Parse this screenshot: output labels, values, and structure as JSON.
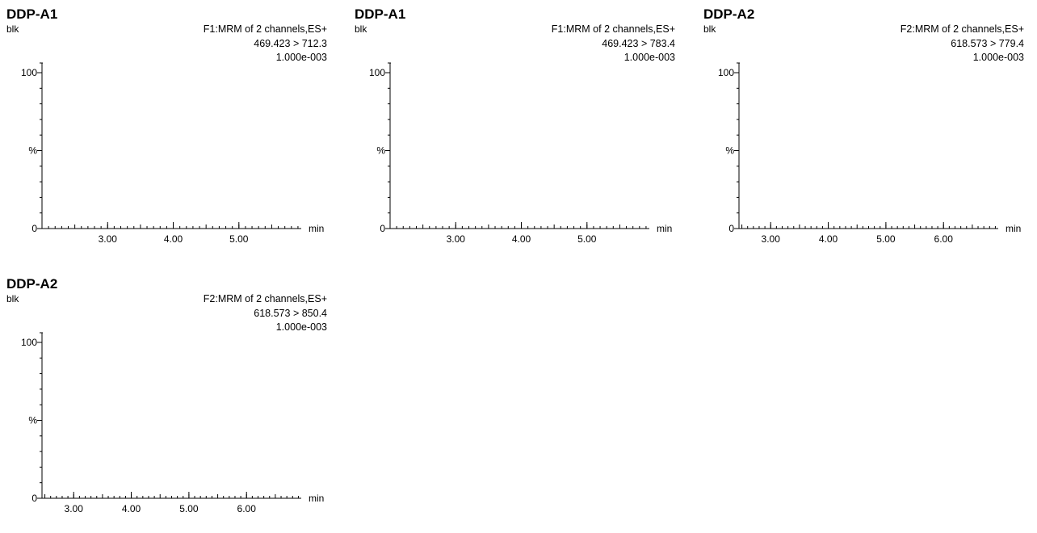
{
  "chart_data": [
    {
      "type": "line",
      "title": "DDP-A1",
      "sample": "blk",
      "function": "F1:MRM of 2 channels,ES+",
      "transition": "469.423 > 712.3",
      "intensity": "1.000e-003",
      "xlabel": "min",
      "xlim": [
        2.0,
        5.95
      ],
      "ylim": [
        0,
        100
      ],
      "y_ticks": [
        {
          "v": 0,
          "label": "0"
        },
        {
          "v": 50,
          "label": "%"
        },
        {
          "v": 100,
          "label": "100"
        }
      ],
      "x_ticks": [
        {
          "v": 3,
          "label": "3.00"
        },
        {
          "v": 4,
          "label": "4.00"
        },
        {
          "v": 5,
          "label": "5.00"
        }
      ],
      "minor_step": 0.1,
      "series": [
        {
          "x": [],
          "y": []
        }
      ]
    },
    {
      "type": "line",
      "title": "DDP-A1",
      "sample": "blk",
      "function": "F1:MRM of 2 channels,ES+",
      "transition": "469.423 > 783.4",
      "intensity": "1.000e-003",
      "xlabel": "min",
      "xlim": [
        2.0,
        5.95
      ],
      "ylim": [
        0,
        100
      ],
      "y_ticks": [
        {
          "v": 0,
          "label": "0"
        },
        {
          "v": 50,
          "label": "%"
        },
        {
          "v": 100,
          "label": "100"
        }
      ],
      "x_ticks": [
        {
          "v": 3,
          "label": "3.00"
        },
        {
          "v": 4,
          "label": "4.00"
        },
        {
          "v": 5,
          "label": "5.00"
        }
      ],
      "minor_step": 0.1,
      "series": [
        {
          "x": [],
          "y": []
        }
      ]
    },
    {
      "type": "line",
      "title": "DDP-A2",
      "sample": "blk",
      "function": "F2:MRM of 2 channels,ES+",
      "transition": "618.573 > 779.4",
      "intensity": "1.000e-003",
      "xlabel": "min",
      "xlim": [
        2.45,
        6.95
      ],
      "ylim": [
        0,
        100
      ],
      "y_ticks": [
        {
          "v": 0,
          "label": "0"
        },
        {
          "v": 50,
          "label": "%"
        },
        {
          "v": 100,
          "label": "100"
        }
      ],
      "x_ticks": [
        {
          "v": 3,
          "label": "3.00"
        },
        {
          "v": 4,
          "label": "4.00"
        },
        {
          "v": 5,
          "label": "5.00"
        },
        {
          "v": 6,
          "label": "6.00"
        }
      ],
      "minor_step": 0.1,
      "series": [
        {
          "x": [],
          "y": []
        }
      ]
    },
    {
      "type": "line",
      "title": "DDP-A2",
      "sample": "blk",
      "function": "F2:MRM of 2 channels,ES+",
      "transition": "618.573 > 850.4",
      "intensity": "1.000e-003",
      "xlabel": "min",
      "xlim": [
        2.45,
        6.95
      ],
      "ylim": [
        0,
        100
      ],
      "y_ticks": [
        {
          "v": 0,
          "label": "0"
        },
        {
          "v": 50,
          "label": "%"
        },
        {
          "v": 100,
          "label": "100"
        }
      ],
      "x_ticks": [
        {
          "v": 3,
          "label": "3.00"
        },
        {
          "v": 4,
          "label": "4.00"
        },
        {
          "v": 5,
          "label": "5.00"
        },
        {
          "v": 6,
          "label": "6.00"
        }
      ],
      "minor_step": 0.1,
      "series": [
        {
          "x": [],
          "y": []
        }
      ]
    }
  ]
}
